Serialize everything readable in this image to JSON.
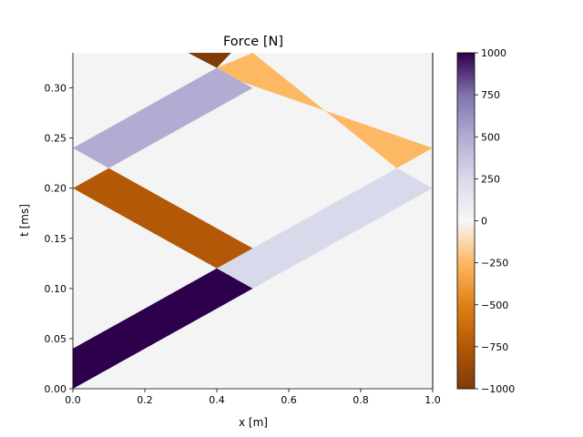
{
  "chart_data": {
    "type": "heatmap",
    "title": "Force [N]",
    "xlabel": "x [m]",
    "ylabel": "t [ms]",
    "xlim": [
      0.0,
      1.0
    ],
    "ylim": [
      0.0,
      0.335
    ],
    "xticks": [
      "0.0",
      "0.2",
      "0.4",
      "0.6",
      "0.8",
      "1.0"
    ],
    "yticks": [
      "0.00",
      "0.05",
      "0.10",
      "0.15",
      "0.20",
      "0.25",
      "0.30"
    ],
    "background_value": 0,
    "boundary_line_x": 1.0,
    "colorbar": {
      "min": -1000,
      "max": 1000,
      "colormap": "PuOr",
      "ticks": [
        "1000",
        "750",
        "500",
        "250",
        "0",
        "−250",
        "−500",
        "−750",
        "−1000"
      ]
    },
    "bands": [
      {
        "value": 1000,
        "polygon": [
          [
            0.0,
            0.0
          ],
          [
            0.5,
            0.1
          ],
          [
            0.4,
            0.12
          ],
          [
            0.0,
            0.04
          ]
        ]
      },
      {
        "value": -750,
        "polygon": [
          [
            0.1,
            0.22
          ],
          [
            0.5,
            0.14
          ],
          [
            0.4,
            0.12
          ],
          [
            0.0,
            0.2
          ]
        ]
      },
      {
        "value": 500,
        "polygon": [
          [
            0.5,
            0.3
          ],
          [
            0.1,
            0.22
          ],
          [
            0.0,
            0.24
          ],
          [
            0.4,
            0.32
          ]
        ]
      },
      {
        "value": -1000,
        "polygon": [
          [
            0.32,
            0.335
          ],
          [
            0.4,
            0.32
          ],
          [
            0.44,
            0.335
          ]
        ]
      },
      {
        "value": 250,
        "polygon": [
          [
            0.5,
            0.1
          ],
          [
            0.4,
            0.12
          ],
          [
            0.9,
            0.22
          ],
          [
            1.0,
            0.2
          ]
        ]
      },
      {
        "value": -250,
        "polygon": [
          [
            0.5,
            0.335
          ],
          [
            0.4,
            0.32
          ],
          [
            0.47,
            0.306
          ],
          [
            1.0,
            0.24
          ],
          [
            0.9,
            0.22
          ]
        ]
      }
    ]
  }
}
